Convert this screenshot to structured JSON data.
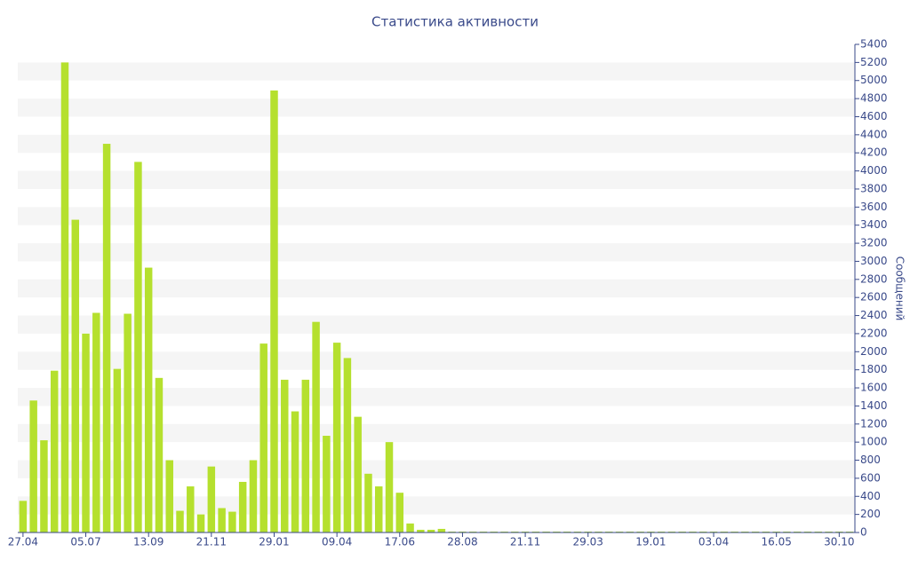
{
  "chart_data": {
    "type": "bar",
    "title": "Статистика активности",
    "y_label": "Сообщений",
    "categories": [
      "27.04",
      null,
      null,
      null,
      null,
      null,
      "05.07",
      null,
      null,
      null,
      null,
      null,
      "13.09",
      null,
      null,
      null,
      null,
      null,
      "21.11",
      null,
      null,
      null,
      null,
      null,
      "29.01",
      null,
      null,
      null,
      null,
      null,
      "09.04",
      null,
      null,
      null,
      null,
      null,
      "17.06",
      null,
      null,
      null,
      null,
      null,
      "28.08",
      null,
      null,
      null,
      null,
      null,
      "21.11",
      null,
      null,
      null,
      null,
      null,
      "29.03",
      null,
      null,
      null,
      null,
      null,
      "19.01",
      null,
      null,
      null,
      null,
      null,
      "03.04",
      null,
      null,
      null,
      null,
      null,
      "16.05",
      null,
      null,
      null,
      null,
      null,
      "30.10",
      null
    ],
    "values": [
      350,
      1460,
      1020,
      1790,
      5200,
      3460,
      2200,
      2430,
      4300,
      1810,
      2420,
      4100,
      2930,
      1710,
      800,
      240,
      510,
      200,
      730,
      270,
      230,
      560,
      800,
      2090,
      4890,
      1690,
      1340,
      1690,
      2330,
      1070,
      2100,
      1930,
      1280,
      650,
      510,
      1000,
      440,
      100,
      30,
      30,
      40,
      10,
      10,
      10,
      10,
      10,
      10,
      10,
      10,
      10,
      10,
      10,
      10,
      10,
      10,
      10,
      10,
      10,
      10,
      10,
      10,
      10,
      10,
      10,
      10,
      10,
      10,
      10,
      10,
      10,
      10,
      10,
      10,
      10,
      10,
      10,
      10,
      10,
      10,
      10
    ],
    "color": "#b5e02e",
    "ylim": [
      0,
      5400
    ],
    "yticks": [
      0,
      200,
      400,
      600,
      800,
      1000,
      1200,
      1400,
      1600,
      1800,
      2000,
      2200,
      2400,
      2600,
      2800,
      3000,
      3200,
      3400,
      3600,
      3800,
      4000,
      4200,
      4400,
      4600,
      4800,
      5000,
      5200,
      5400
    ],
    "grid": true
  }
}
